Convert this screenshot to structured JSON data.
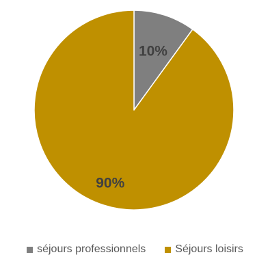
{
  "chart_data": {
    "type": "pie",
    "categories": [
      "séjours professionnels",
      "Séjours loisirs"
    ],
    "values": [
      10,
      90
    ],
    "data_labels": [
      "10%",
      "90%"
    ],
    "colors": [
      "#7f7f7f",
      "#bf9000"
    ],
    "start_angle_deg": 0,
    "direction": "clockwise",
    "legend_position": "bottom",
    "title": ""
  },
  "legend": {
    "items": [
      {
        "label": "séjours professionnels",
        "color": "#7f7f7f"
      },
      {
        "label": "Séjours loisirs",
        "color": "#bf9000"
      }
    ]
  }
}
